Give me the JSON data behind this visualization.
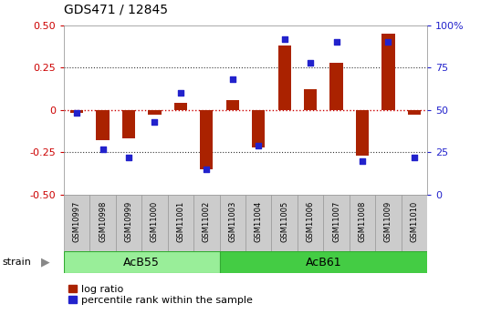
{
  "title": "GDS471 / 12845",
  "samples": [
    "GSM10997",
    "GSM10998",
    "GSM10999",
    "GSM11000",
    "GSM11001",
    "GSM11002",
    "GSM11003",
    "GSM11004",
    "GSM11005",
    "GSM11006",
    "GSM11007",
    "GSM11008",
    "GSM11009",
    "GSM11010"
  ],
  "log_ratio": [
    -0.02,
    -0.18,
    -0.17,
    -0.03,
    0.04,
    -0.35,
    0.06,
    -0.22,
    0.38,
    0.12,
    0.28,
    -0.27,
    0.45,
    -0.03
  ],
  "percentile_rank": [
    48,
    27,
    22,
    43,
    60,
    15,
    68,
    29,
    92,
    78,
    90,
    20,
    90,
    22
  ],
  "groups": [
    {
      "label": "AcB55",
      "start": 0,
      "end": 5,
      "color": "#99ee99"
    },
    {
      "label": "AcB61",
      "start": 6,
      "end": 13,
      "color": "#44cc44"
    }
  ],
  "bar_color": "#aa2200",
  "dot_color": "#2222cc",
  "left_axis_color": "#cc0000",
  "right_axis_color": "#2222cc",
  "ylim_left": [
    -0.5,
    0.5
  ],
  "ylim_right": [
    0,
    100
  ],
  "yticks_left": [
    -0.5,
    -0.25,
    0.0,
    0.25,
    0.5
  ],
  "yticks_right": [
    0,
    25,
    50,
    75,
    100
  ],
  "zero_line_color": "#cc0000",
  "dotted_line_color": "#333333",
  "background_color": "#ffffff",
  "plot_bg_color": "#ffffff",
  "title_fontsize": 10,
  "tick_fontsize": 8,
  "sample_fontsize": 6,
  "group_fontsize": 9,
  "legend_fontsize": 8,
  "legend_labels": [
    "log ratio",
    "percentile rank within the sample"
  ],
  "legend_colors": [
    "#aa2200",
    "#2222cc"
  ],
  "strain_label": "strain",
  "group_box_color": "#cccccc",
  "strain_arrow_color": "#888888",
  "bar_width": 0.5,
  "dot_size": 25
}
